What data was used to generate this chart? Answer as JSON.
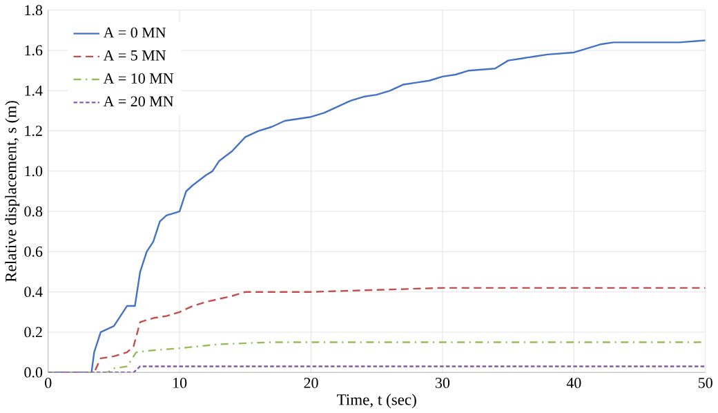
{
  "chart_data": {
    "type": "line",
    "xlabel": "Time, t (sec)",
    "ylabel": "Relative displacement, s  (m)",
    "xlim": [
      0,
      50
    ],
    "ylim": [
      0,
      1.8
    ],
    "xticks": [
      0,
      10,
      20,
      30,
      40,
      50
    ],
    "yticks": [
      {
        "value": 0,
        "label": "0.0"
      },
      {
        "value": 0.2,
        "label": "0.2"
      },
      {
        "value": 0.4,
        "label": "0.4"
      },
      {
        "value": 0.6,
        "label": "0.6"
      },
      {
        "value": 0.8,
        "label": "0.8"
      },
      {
        "value": 1.0,
        "label": "1.0"
      },
      {
        "value": 1.2,
        "label": "1.2"
      },
      {
        "value": 1.4,
        "label": "1.4"
      },
      {
        "value": 1.6,
        "label": "1.6"
      },
      {
        "value": 1.8,
        "label": "1.8"
      }
    ],
    "grid": true,
    "legend": "top left",
    "marker": "none",
    "series": [
      {
        "name": "A = 0 MN",
        "color": "#4472c4",
        "line_style": "solid",
        "x": [
          0,
          3.3,
          3.5,
          4,
          5,
          5.5,
          6,
          6.6,
          7,
          7.5,
          8,
          8.5,
          9,
          10,
          10.5,
          11,
          12,
          12.5,
          13,
          14,
          15,
          16,
          17,
          18,
          20,
          21,
          22,
          23,
          24,
          25,
          26,
          27,
          28,
          29,
          30,
          31,
          32,
          34,
          35,
          36,
          37,
          38,
          40,
          41,
          42,
          43,
          48,
          50
        ],
        "values": [
          0,
          0,
          0.1,
          0.2,
          0.23,
          0.28,
          0.33,
          0.33,
          0.5,
          0.6,
          0.65,
          0.75,
          0.78,
          0.8,
          0.9,
          0.93,
          0.98,
          1.0,
          1.05,
          1.1,
          1.17,
          1.2,
          1.22,
          1.25,
          1.27,
          1.29,
          1.32,
          1.35,
          1.37,
          1.38,
          1.4,
          1.43,
          1.44,
          1.45,
          1.47,
          1.48,
          1.5,
          1.51,
          1.55,
          1.56,
          1.57,
          1.58,
          1.59,
          1.61,
          1.63,
          1.64,
          1.64,
          1.65
        ]
      },
      {
        "name": "A = 5 MN",
        "color": "#c0504d",
        "line_style": "dashed",
        "x": [
          0,
          3.5,
          4,
          5,
          6,
          6.5,
          7,
          8,
          9,
          10,
          11,
          12,
          14,
          15,
          20,
          25,
          30,
          50
        ],
        "values": [
          0,
          0,
          0.07,
          0.08,
          0.1,
          0.13,
          0.25,
          0.27,
          0.28,
          0.3,
          0.33,
          0.35,
          0.38,
          0.4,
          0.4,
          0.41,
          0.42,
          0.42
        ]
      },
      {
        "name": "A = 10 MN",
        "color": "#9bbb59",
        "line_style": "dashdot",
        "x": [
          0,
          4.5,
          5,
          6,
          6.7,
          8,
          10,
          13,
          17,
          50
        ],
        "values": [
          0,
          0,
          0.02,
          0.03,
          0.1,
          0.11,
          0.12,
          0.14,
          0.15,
          0.15
        ]
      },
      {
        "name": "A = 20 MN",
        "color": "#7f5fa8",
        "line_style": "densely dashed",
        "x": [
          0,
          6.5,
          7,
          50
        ],
        "values": [
          0,
          0,
          0.03,
          0.03
        ]
      }
    ]
  }
}
